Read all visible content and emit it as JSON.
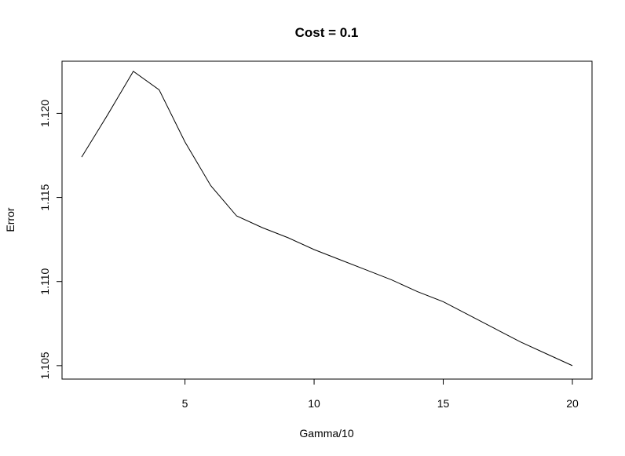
{
  "chart_data": {
    "type": "line",
    "title": "Cost = 0.1",
    "xlabel": "Gamma/10",
    "ylabel": "Error",
    "xlim": [
      0.24,
      20.76
    ],
    "ylim": [
      1.1042,
      1.1231
    ],
    "xticks": [
      5,
      10,
      15,
      20
    ],
    "yticks": [
      1.105,
      1.11,
      1.115,
      1.12
    ],
    "ytick_labels": [
      "1.105",
      "1.110",
      "1.115",
      "1.120"
    ],
    "grid": false,
    "legend": "none",
    "line_color": "#000000",
    "series": [
      {
        "x": [
          1,
          2,
          3,
          4,
          5,
          6,
          7,
          8,
          9,
          10,
          11,
          12,
          13,
          14,
          15,
          16,
          17,
          18,
          19,
          20
        ],
        "values": [
          1.1174,
          1.1199,
          1.1225,
          1.1214,
          1.1183,
          1.1157,
          1.1139,
          1.1132,
          1.1126,
          1.1119,
          1.1113,
          1.1107,
          1.1101,
          1.1094,
          1.1088,
          1.108,
          1.1072,
          1.1064,
          1.1057,
          1.105
        ]
      }
    ]
  }
}
